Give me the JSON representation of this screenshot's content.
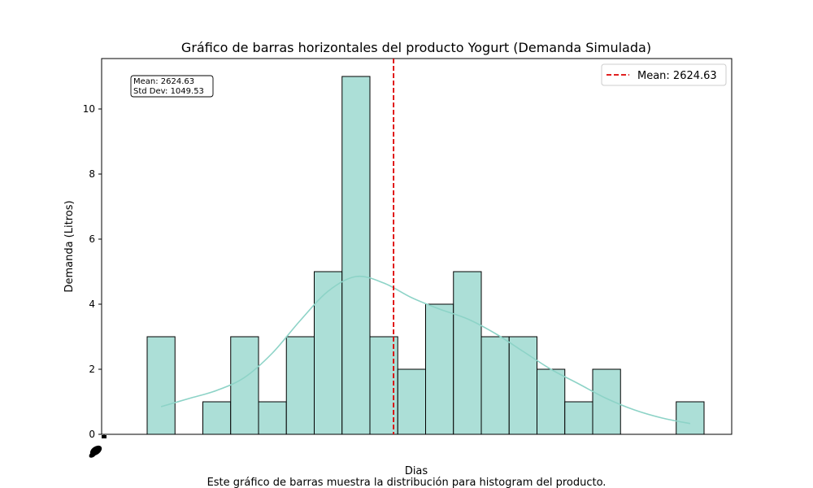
{
  "chart_data": {
    "type": "bar",
    "title": "Gráfico de barras horizontales del producto Yogurt (Demanda Simulada)",
    "xlabel": "Dias",
    "ylabel": "Demanda (Litros)",
    "caption": "Este gráfico de barras muestra la distribución para histogram del producto.",
    "ylim": [
      0,
      11.55
    ],
    "yticks": [
      0,
      2,
      4,
      6,
      8,
      10
    ],
    "grid": false,
    "legend_position": "top-right",
    "legend_label": "Mean: 2624.63",
    "stats_box": {
      "mean_label": "Mean: 2624.63",
      "std_label": "Std Dev: 1049.53"
    },
    "mean": 2624.63,
    "bins": [
      {
        "index": 0,
        "count": 3
      },
      {
        "index": 2,
        "count": 1
      },
      {
        "index": 3,
        "count": 3
      },
      {
        "index": 4,
        "count": 1
      },
      {
        "index": 5,
        "count": 3
      },
      {
        "index": 6,
        "count": 5
      },
      {
        "index": 7,
        "count": 11
      },
      {
        "index": 8,
        "count": 3
      },
      {
        "index": 9,
        "count": 2
      },
      {
        "index": 10,
        "count": 4
      },
      {
        "index": 11,
        "count": 5
      },
      {
        "index": 12,
        "count": 3
      },
      {
        "index": 13,
        "count": 3
      },
      {
        "index": 14,
        "count": 2
      },
      {
        "index": 15,
        "count": 1
      },
      {
        "index": 16,
        "count": 2
      },
      {
        "index": 19,
        "count": 1
      }
    ],
    "kde": [
      [
        0,
        0.85
      ],
      [
        1,
        1.1
      ],
      [
        2,
        1.35
      ],
      [
        3,
        1.75
      ],
      [
        4,
        2.5
      ],
      [
        5,
        3.5
      ],
      [
        6,
        4.4
      ],
      [
        7,
        4.85
      ],
      [
        8,
        4.65
      ],
      [
        9,
        4.2
      ],
      [
        10,
        3.85
      ],
      [
        11,
        3.55
      ],
      [
        12,
        3.1
      ],
      [
        13,
        2.55
      ],
      [
        14,
        2.0
      ],
      [
        15,
        1.55
      ],
      [
        16,
        1.1
      ],
      [
        17,
        0.75
      ],
      [
        18,
        0.5
      ],
      [
        19,
        0.33
      ]
    ],
    "colors": {
      "bar_fill": "#acdfd7",
      "bar_edge": "#000000",
      "kde_line": "#8dd3c7",
      "mean_line": "#dd0000"
    }
  }
}
